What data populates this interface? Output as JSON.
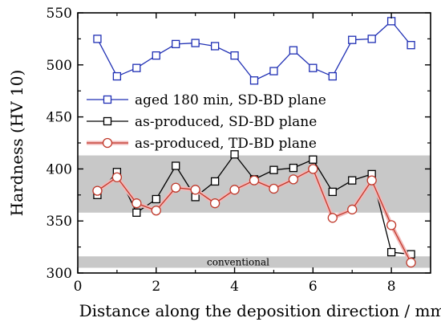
{
  "chart_data": {
    "type": "line",
    "xlabel": "Distance along the deposition direction / mm",
    "ylabel": "Hardness (HV 10)",
    "xlim": [
      0,
      9
    ],
    "ylim": [
      300,
      550
    ],
    "xticks": [
      0,
      2,
      4,
      6,
      8
    ],
    "yticks": [
      300,
      350,
      400,
      450,
      500,
      550
    ],
    "grid": false,
    "legend_position": "upper-left",
    "bands": [
      {
        "y0": 358,
        "y1": 413,
        "color": "#c8c8c8",
        "label": ""
      },
      {
        "y0": 305,
        "y1": 316,
        "color": "#c8c8c8",
        "label": "conventional"
      }
    ],
    "series": [
      {
        "name": "aged 180 min, SD-BD plane",
        "color": "#1f2fb4",
        "marker": "square",
        "x": [
          0.5,
          1.0,
          1.5,
          2.0,
          2.5,
          3.0,
          3.5,
          4.0,
          4.5,
          5.0,
          5.5,
          6.0,
          6.5,
          7.0,
          7.5,
          8.0,
          8.5
        ],
        "y": [
          525,
          489,
          497,
          509,
          520,
          521,
          518,
          509,
          485,
          494,
          514,
          497,
          489,
          524,
          525,
          542,
          519
        ]
      },
      {
        "name": "as-produced, SD-BD plane",
        "color": "#000000",
        "marker": "square",
        "x": [
          0.5,
          1.0,
          1.5,
          2.0,
          2.5,
          3.0,
          3.5,
          4.0,
          4.5,
          5.0,
          5.5,
          6.0,
          6.5,
          7.0,
          7.5,
          8.0,
          8.5
        ],
        "y": [
          375,
          397,
          358,
          371,
          403,
          373,
          388,
          414,
          390,
          399,
          401,
          409,
          378,
          389,
          395,
          320,
          318
        ]
      },
      {
        "name": "as-produced, TD-BD plane",
        "color": "#c0392b",
        "marker": "circle",
        "x": [
          0.5,
          1.0,
          1.5,
          2.0,
          2.5,
          3.0,
          3.5,
          4.0,
          4.5,
          5.0,
          5.5,
          6.0,
          6.5,
          7.0,
          7.5,
          8.0,
          8.5
        ],
        "y": [
          379,
          392,
          367,
          360,
          382,
          380,
          367,
          380,
          389,
          381,
          390,
          400,
          353,
          361,
          389,
          346,
          310
        ]
      }
    ]
  }
}
